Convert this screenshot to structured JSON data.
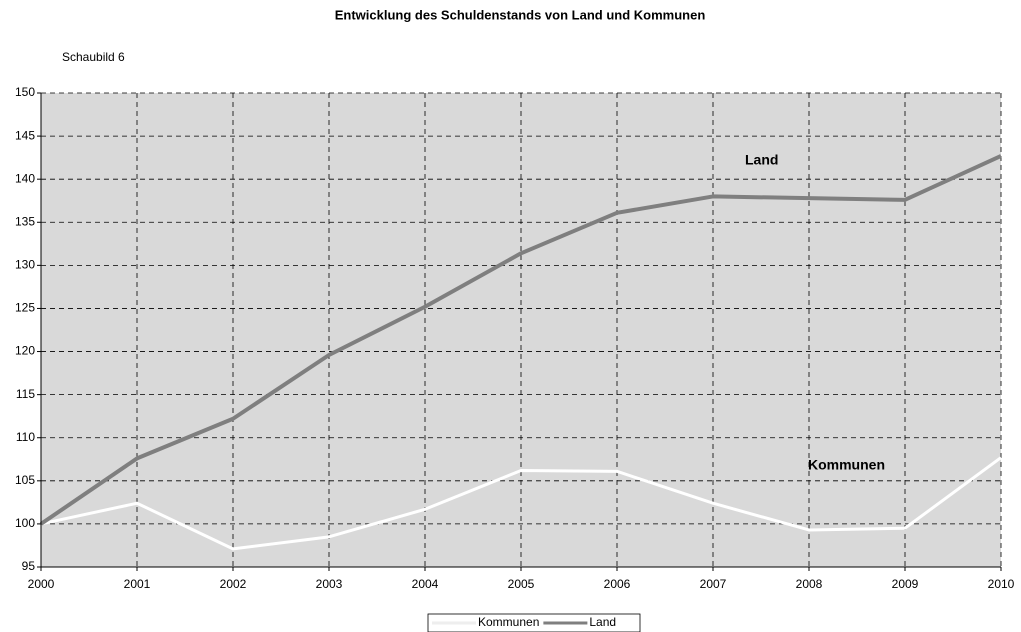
{
  "chart_data": {
    "type": "line",
    "title": "Entwicklung des Schuldenstands von Land und Kommunen",
    "subtitle": "Schaubild 6",
    "annotations": [
      "Land",
      "Kommunen"
    ],
    "x": [
      2000,
      2001,
      2002,
      2003,
      2004,
      2005,
      2006,
      2007,
      2008,
      2009,
      2010
    ],
    "series": [
      {
        "name": "Kommunen",
        "color": "#ffffff",
        "values": [
          100,
          102.4,
          97.1,
          98.5,
          101.7,
          106.2,
          106.1,
          102.4,
          99.3,
          99.5,
          107.7
        ]
      },
      {
        "name": "Land",
        "color": "#7f7f7f",
        "values": [
          100,
          107.6,
          112.2,
          119.6,
          125.2,
          131.4,
          136.1,
          138.0,
          137.8,
          137.6,
          142.7
        ]
      }
    ],
    "xlim": [
      2000,
      2010
    ],
    "xticks": [
      2000,
      2001,
      2002,
      2003,
      2004,
      2005,
      2006,
      2007,
      2008,
      2009,
      2010
    ],
    "ylim": [
      95,
      150
    ],
    "yticks": [
      95,
      100,
      105,
      110,
      115,
      120,
      125,
      130,
      135,
      140,
      145,
      150
    ],
    "grid": true,
    "legend": "bottom"
  }
}
